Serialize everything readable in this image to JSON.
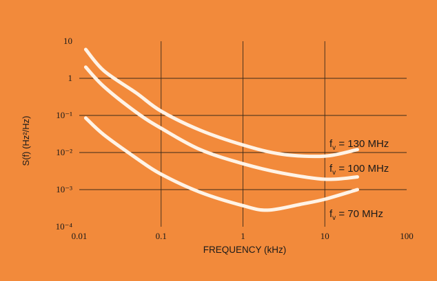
{
  "chart_data": {
    "type": "line",
    "title": "",
    "xlabel": "FREQUENCY (kHz)",
    "ylabel": "S(f) (Hz²/Hz)",
    "x_scale": "log",
    "y_scale": "log",
    "xlim": [
      0.01,
      100
    ],
    "ylim": [
      0.0001,
      10
    ],
    "x_ticks": [
      "0.01",
      "0.1",
      "1",
      "10",
      "100"
    ],
    "y_ticks": [
      "10⁻⁴",
      "10⁻³",
      "10⁻²",
      "10⁻¹",
      "1",
      "10"
    ],
    "grid": true,
    "line_color": "#fff3e6",
    "background": "#f28a3b",
    "series": [
      {
        "name": "f_v = 130 MHz",
        "label_main": "f",
        "label_sub": "v",
        "label_rest": " = 130 MHz",
        "x": [
          0.012,
          0.02,
          0.05,
          0.1,
          0.3,
          1,
          3,
          10,
          25
        ],
        "y": [
          6,
          1.6,
          0.4,
          0.13,
          0.04,
          0.016,
          0.009,
          0.008,
          0.012
        ]
      },
      {
        "name": "f_v = 100 MHz",
        "label_main": "f",
        "label_sub": "v",
        "label_rest": " = 100 MHz",
        "x": [
          0.012,
          0.02,
          0.05,
          0.1,
          0.3,
          1,
          3,
          10,
          25
        ],
        "y": [
          2,
          0.6,
          0.12,
          0.045,
          0.012,
          0.005,
          0.0028,
          0.0019,
          0.0022
        ]
      },
      {
        "name": "f_v = 70 MHz",
        "label_main": "f",
        "label_sub": "v",
        "label_rest": " = 70 MHz",
        "x": [
          0.012,
          0.02,
          0.05,
          0.1,
          0.3,
          1,
          2,
          5,
          10,
          25
        ],
        "y": [
          0.085,
          0.03,
          0.007,
          0.0026,
          0.00085,
          0.00037,
          0.00028,
          0.0004,
          0.00055,
          0.001
        ]
      }
    ]
  }
}
